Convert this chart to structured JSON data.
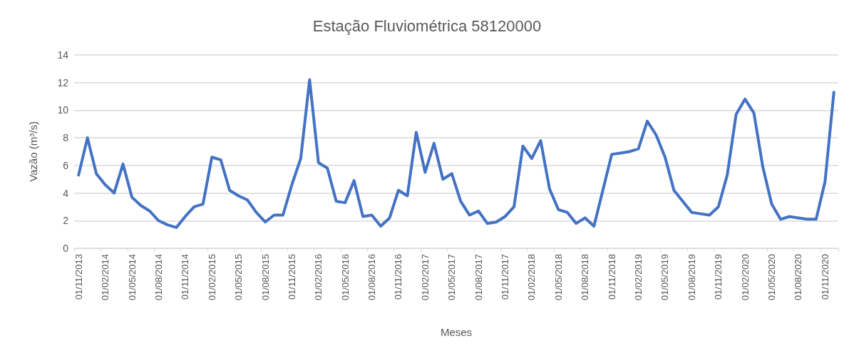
{
  "chart_data": {
    "type": "line",
    "title": "Estação Fluviométrica 58120000",
    "xlabel": "Meses",
    "ylabel": "Vazão (m³/s)",
    "categories": [
      "01/11/2013",
      null,
      null,
      "01/02/2014",
      null,
      null,
      "01/05/2014",
      null,
      null,
      "01/08/2014",
      null,
      null,
      "01/11/2014",
      null,
      null,
      "01/02/2015",
      null,
      null,
      "01/05/2015",
      null,
      null,
      "01/08/2015",
      null,
      null,
      "01/11/2015",
      null,
      null,
      "01/02/2016",
      null,
      null,
      "01/05/2016",
      null,
      null,
      "01/08/2016",
      null,
      null,
      "01/11/2016",
      null,
      null,
      "01/02/2017",
      null,
      null,
      "01/05/2017",
      null,
      null,
      "01/08/2017",
      null,
      null,
      "01/11/2017",
      null,
      null,
      "01/02/2018",
      null,
      null,
      "01/05/2018",
      null,
      null,
      "01/08/2018",
      null,
      null,
      "01/11/2018",
      null,
      null,
      "01/02/2019",
      null,
      null,
      "01/05/2019",
      null,
      null,
      "01/08/2019",
      null,
      null,
      "01/11/2019",
      null,
      null,
      "01/02/2020",
      null,
      null,
      "01/05/2020",
      null,
      null,
      "01/08/2020",
      null,
      null,
      "01/11/2020",
      null
    ],
    "series": [
      {
        "color": "#4472c4",
        "values": [
          5.3,
          8.0,
          5.4,
          4.6,
          4.0,
          6.1,
          3.7,
          3.1,
          2.7,
          2.0,
          1.7,
          1.5,
          2.3,
          3.0,
          3.2,
          6.6,
          6.4,
          4.2,
          3.8,
          3.5,
          2.6,
          1.9,
          2.4,
          2.4,
          4.6,
          6.5,
          12.2,
          6.2,
          5.8,
          3.4,
          3.3,
          4.9,
          2.3,
          2.4,
          1.6,
          2.2,
          4.2,
          3.8,
          8.4,
          5.5,
          7.6,
          5.0,
          5.4,
          3.4,
          2.4,
          2.7,
          1.8,
          1.9,
          2.3,
          3.0,
          7.4,
          6.5,
          7.8,
          4.3,
          2.8,
          2.6,
          1.8,
          2.2,
          1.6,
          4.2,
          6.8,
          6.9,
          7.0,
          7.2,
          9.2,
          8.2,
          6.6,
          4.2,
          3.4,
          2.6,
          2.5,
          2.4,
          3.0,
          5.3,
          9.7,
          10.8,
          9.8,
          5.9,
          3.2,
          2.1,
          2.3,
          2.2,
          2.1,
          2.1,
          4.8,
          11.3
        ]
      }
    ],
    "ylim": [
      0,
      14
    ],
    "yticks": [
      0,
      2,
      4,
      6,
      8,
      10,
      12,
      14
    ],
    "grid": "y",
    "marker": "none",
    "line_style": "solid"
  }
}
